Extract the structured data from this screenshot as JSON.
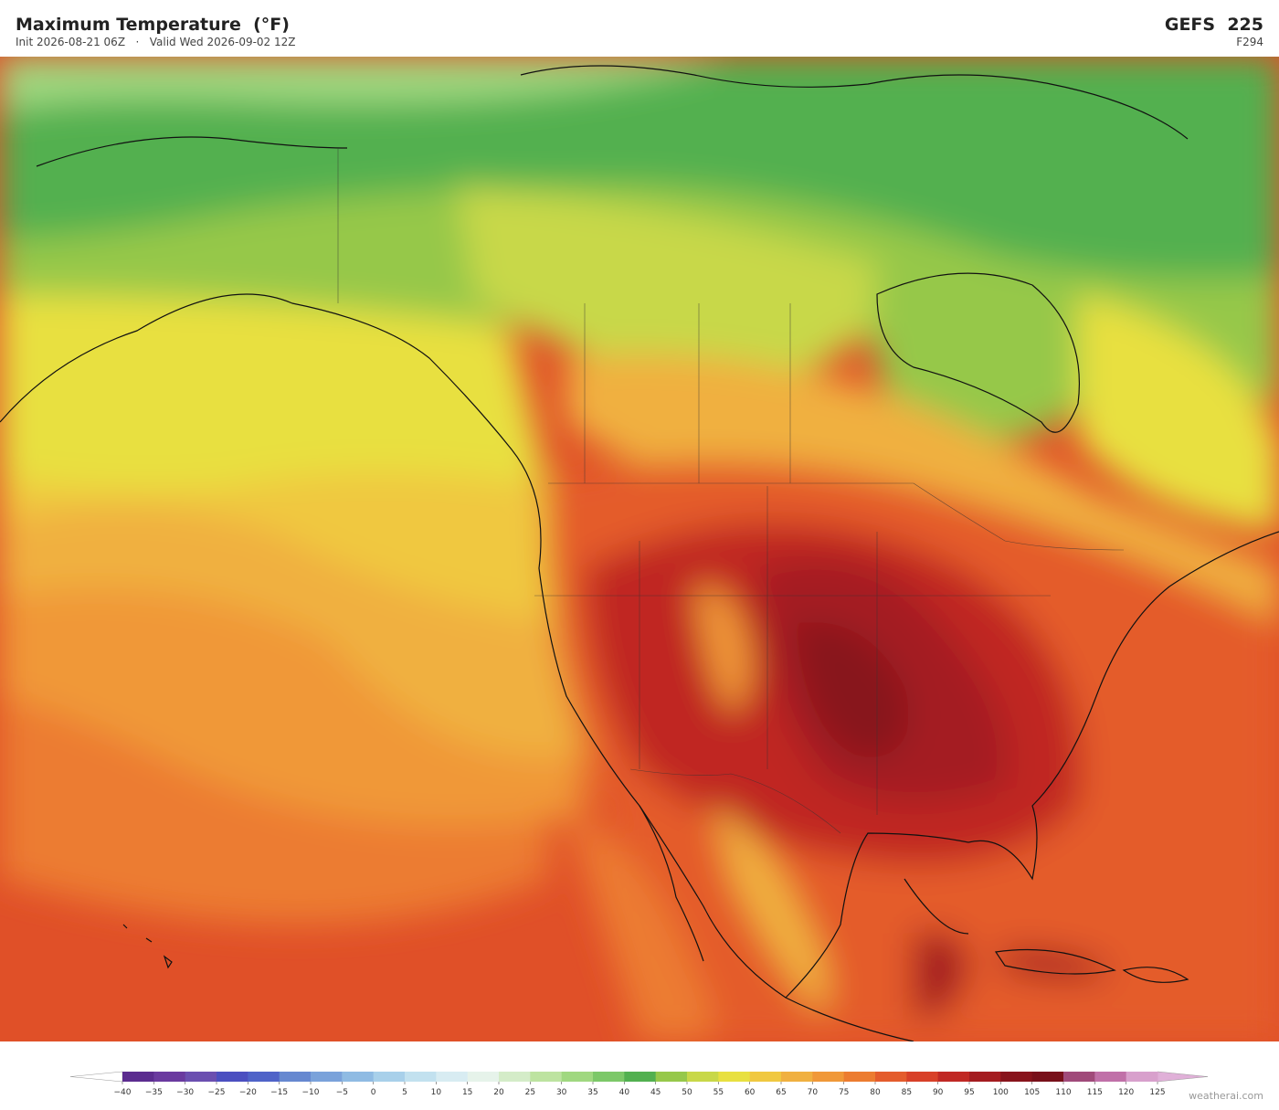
{
  "header": {
    "title": "Maximum Temperature  (°F)",
    "subtitle": "Init 2026-08-21 06Z   ·   Valid Wed 2026-09-02 12Z",
    "model": "GEFS  225",
    "forecast_hour": "F294"
  },
  "colorbar": {
    "ticks": [
      {
        "value": -40,
        "label": "−40"
      },
      {
        "value": -35,
        "label": "−35"
      },
      {
        "value": -30,
        "label": "−30"
      },
      {
        "value": -25,
        "label": "−25"
      },
      {
        "value": -20,
        "label": "−20"
      },
      {
        "value": -15,
        "label": "−15"
      },
      {
        "value": -10,
        "label": "−10"
      },
      {
        "value": -5,
        "label": "−5"
      },
      0,
      5,
      10,
      15,
      20,
      25,
      30,
      35,
      40,
      45,
      50,
      55,
      60,
      65,
      70,
      75,
      80,
      85,
      90,
      95,
      100,
      105,
      110,
      115,
      120,
      125
    ],
    "colors": [
      "#5b2c8f",
      "#6a3a9f",
      "#6b4fb0",
      "#4b4fc0",
      "#4f63c8",
      "#6688d0",
      "#7aa2da",
      "#8fbbe3",
      "#a8d0ea",
      "#c2e1ef",
      "#d8ecf2",
      "#e6f3ea",
      "#d4ecc8",
      "#bde3a0",
      "#a0d880",
      "#7cc868",
      "#52b050",
      "#96c84a",
      "#c8d848",
      "#e8e040",
      "#f0c840",
      "#f0b040",
      "#f09838",
      "#ec7c30",
      "#e45c2c",
      "#d84028",
      "#c02824",
      "#a41c20",
      "#88141c",
      "#78101a",
      "#a04a7a",
      "#c070a8",
      "#d8a0cc"
    ],
    "extend_colors": [
      "#ffffff",
      "#e0b0d8"
    ]
  },
  "watermark": "weatherai.com"
}
